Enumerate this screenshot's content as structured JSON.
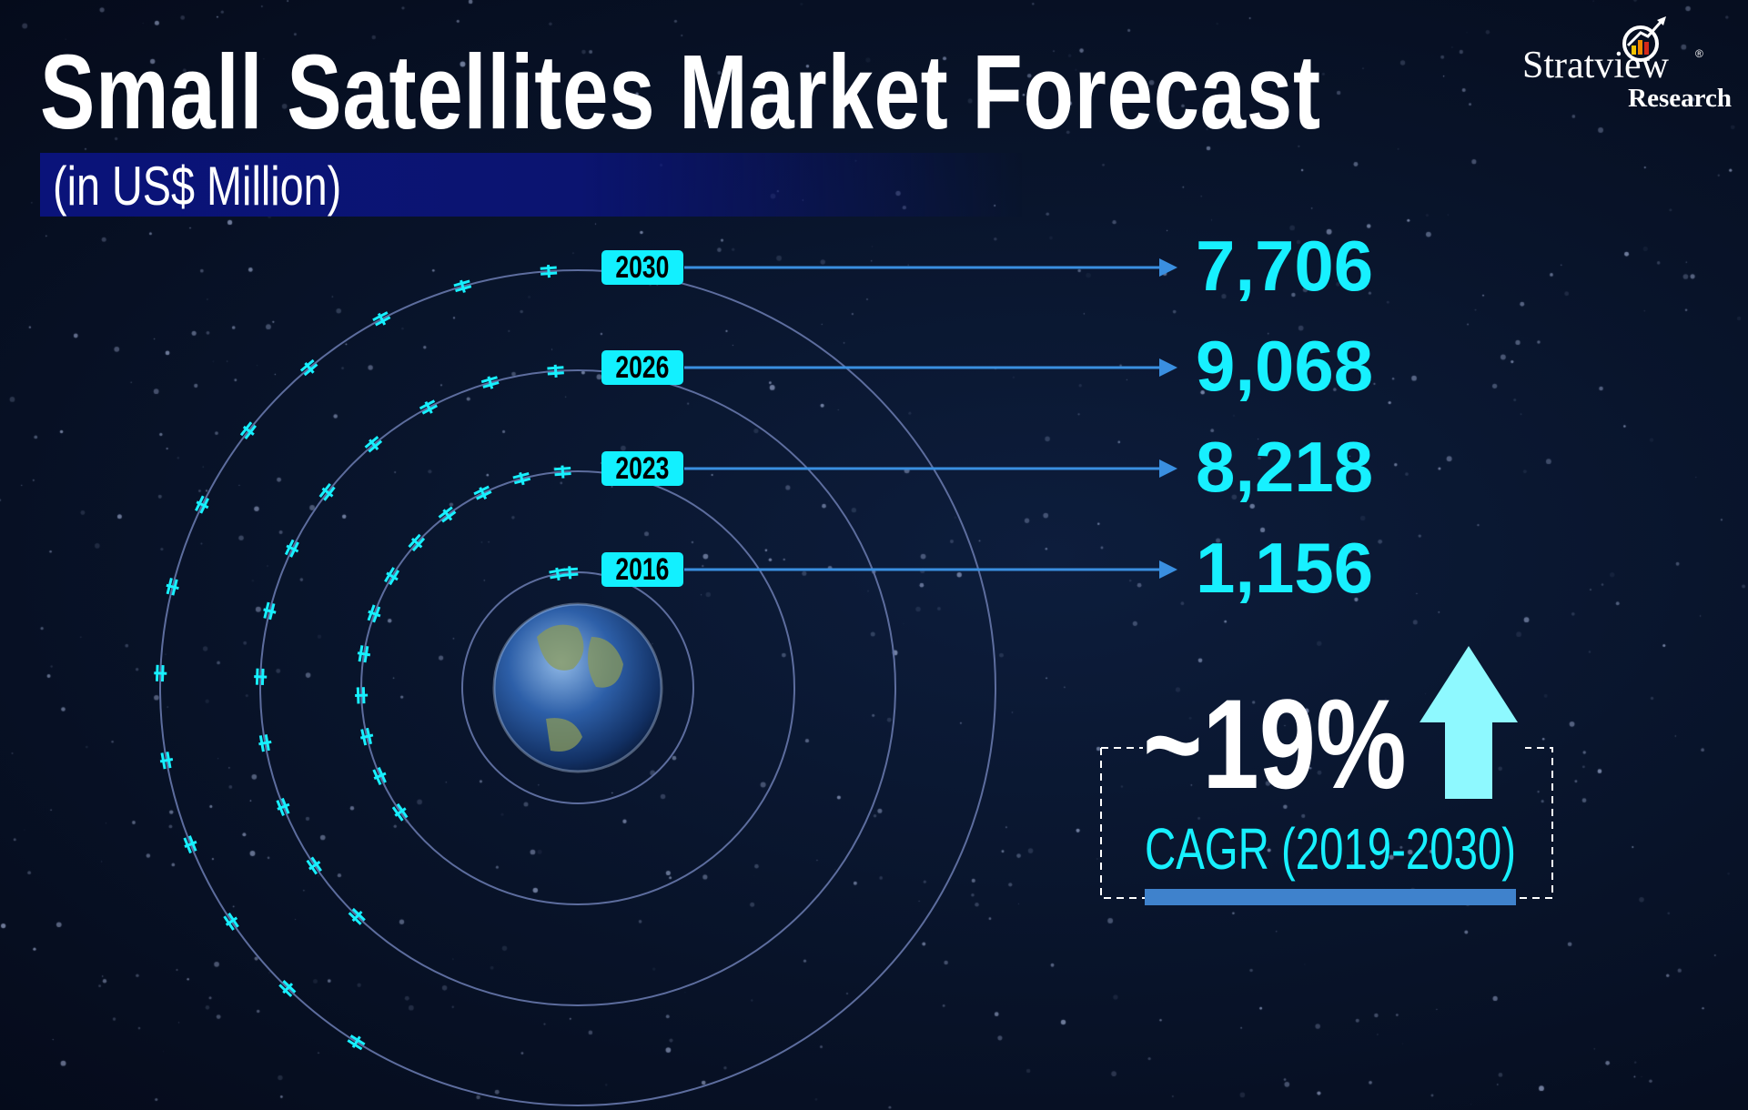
{
  "title": "Small Satellites Market Forecast",
  "subtitle": "(in US$ Million)",
  "logo": {
    "name": "Stratview",
    "sub": "Research",
    "mark": "®"
  },
  "chart_data": {
    "type": "bar",
    "title": "Small Satellites Market Forecast",
    "ylabel": "US$ Million",
    "categories": [
      "2030",
      "2026",
      "2023",
      "2016"
    ],
    "values": [
      7706,
      9068,
      8218,
      1156
    ],
    "labels": [
      "7,706",
      "9,068",
      "8,218",
      "1,156"
    ]
  },
  "cagr": {
    "value": "~19%",
    "label": "CAGR (2019-2030)"
  },
  "colors": {
    "accent": "#17f0ff",
    "bar": "#3f82cc",
    "arrow": "#3a8fe0"
  }
}
